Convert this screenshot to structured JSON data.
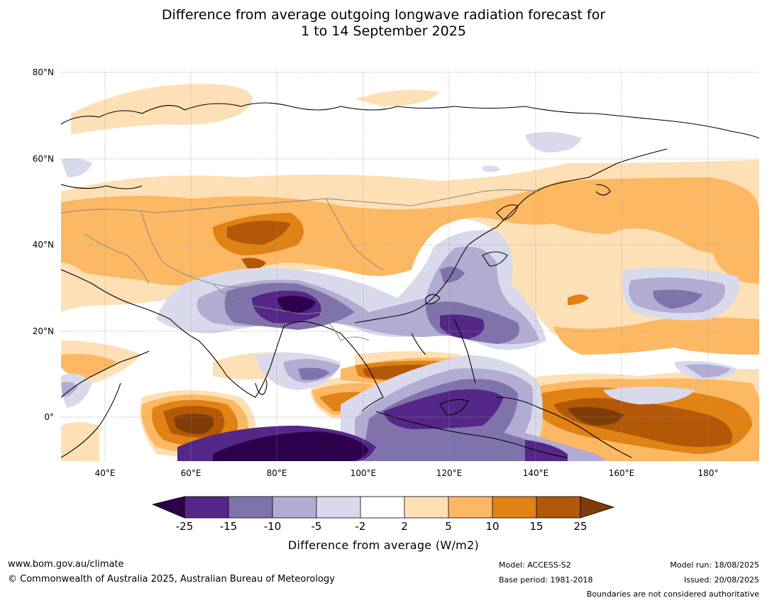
{
  "title": {
    "line1": "Difference from average outgoing longwave radiation forecast for",
    "line2": "1 to 14 September 2025"
  },
  "map": {
    "lat_labels": [
      "80°N",
      "60°N",
      "40°N",
      "20°N",
      "0°"
    ],
    "lon_labels": [
      "40°E",
      "60°E",
      "80°E",
      "100°E",
      "120°E",
      "140°E",
      "160°E",
      "180°"
    ]
  },
  "colors": {
    "below_-25": "#2d004b",
    "-25_-15": "#542788",
    "-15_-10": "#8073ac",
    "-10_-5": "#b2abd2",
    "-5_-2": "#d8daeb",
    "-2_2": "#ffffff",
    "2_5": "#fee0b6",
    "5_10": "#fdb863",
    "10_15": "#e08214",
    "15_25": "#b35806",
    "above_25": "#7f3b08"
  },
  "colorbar": {
    "ticks": [
      "-25",
      "-15",
      "-10",
      "-5",
      "-2",
      "2",
      "5",
      "10",
      "15",
      "25"
    ],
    "title": "Difference from average (W/m2)"
  },
  "footer": {
    "website": "www.bom.gov.au/climate",
    "copyright": "© Commonwealth of Australia 2025, Australian Bureau of Meteorology",
    "model": "Model: ACCESS-S2",
    "base_period": "Base period: 1981-2018",
    "model_run": "Model run: 18/08/2025",
    "issued": "Issued: 20/08/2025",
    "disclaimer": "Boundaries are not considered authoritative"
  }
}
